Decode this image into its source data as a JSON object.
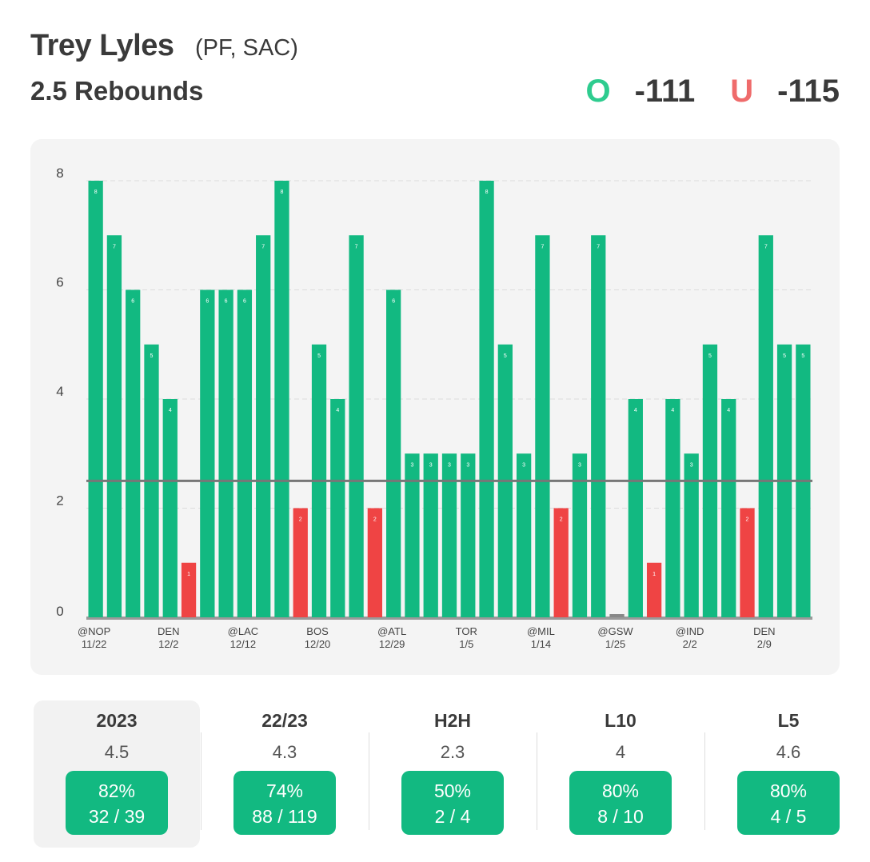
{
  "header": {
    "player_name": "Trey Lyles",
    "player_meta": "(PF, SAC)",
    "prop_line": "2.5 Rebounds",
    "over_label": "O",
    "over_odds": "-111",
    "under_label": "U",
    "under_odds": "-115"
  },
  "colors": {
    "over": "#12b981",
    "under": "#ef4444",
    "line": "#777777"
  },
  "chart_data": {
    "type": "bar",
    "values": [
      8,
      7,
      6,
      5,
      4,
      1,
      6,
      6,
      6,
      7,
      8,
      2,
      5,
      4,
      7,
      2,
      6,
      3,
      3,
      3,
      3,
      8,
      5,
      3,
      7,
      2,
      3,
      7,
      0,
      4,
      1,
      4,
      3,
      5,
      4,
      2,
      7,
      5,
      5
    ],
    "threshold": 2.5,
    "ylim": [
      0,
      8
    ],
    "yticks": [
      0,
      2,
      4,
      6,
      8
    ],
    "xlabels": [
      {
        "index": 0,
        "opp": "@NOP",
        "date": "11/22"
      },
      {
        "index": 4,
        "opp": "DEN",
        "date": "12/2"
      },
      {
        "index": 8,
        "opp": "@LAC",
        "date": "12/12"
      },
      {
        "index": 12,
        "opp": "BOS",
        "date": "12/20"
      },
      {
        "index": 16,
        "opp": "@ATL",
        "date": "12/29"
      },
      {
        "index": 20,
        "opp": "TOR",
        "date": "1/5"
      },
      {
        "index": 24,
        "opp": "@MIL",
        "date": "1/14"
      },
      {
        "index": 28,
        "opp": "@GSW",
        "date": "1/25"
      },
      {
        "index": 32,
        "opp": "@IND",
        "date": "2/2"
      },
      {
        "index": 36,
        "opp": "DEN",
        "date": "2/9"
      }
    ],
    "grid": true,
    "legend": "none"
  },
  "stats": [
    {
      "label": "2023",
      "avg": "4.5",
      "pct": "82%",
      "record": "32 / 39",
      "active": true
    },
    {
      "label": "22/23",
      "avg": "4.3",
      "pct": "74%",
      "record": "88 / 119",
      "active": false
    },
    {
      "label": "H2H",
      "avg": "2.3",
      "pct": "50%",
      "record": "2 / 4",
      "active": false
    },
    {
      "label": "L10",
      "avg": "4",
      "pct": "80%",
      "record": "8 / 10",
      "active": false
    },
    {
      "label": "L5",
      "avg": "4.6",
      "pct": "80%",
      "record": "4 / 5",
      "active": false
    }
  ]
}
